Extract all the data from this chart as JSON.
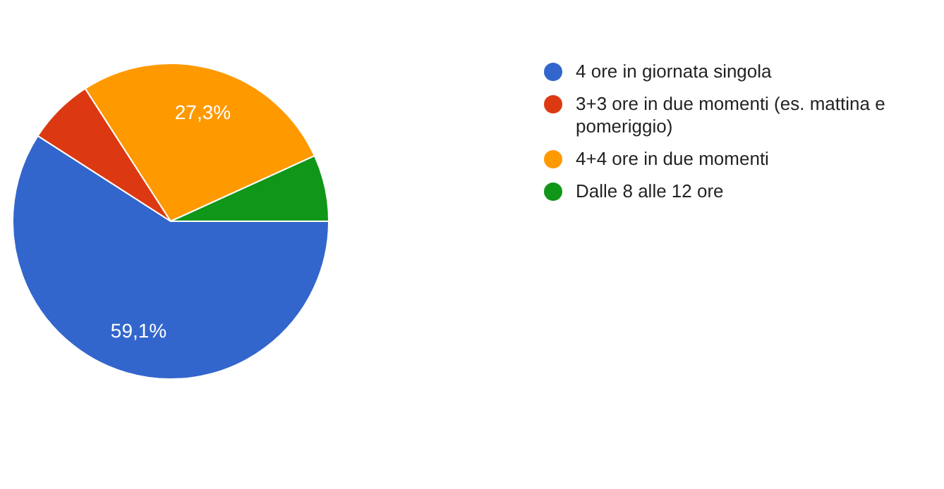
{
  "chart_data": {
    "type": "pie",
    "categories": [
      "4 ore in giornata singola",
      "3+3 ore in due momenti (es. mattina e pomeriggio)",
      "4+4 ore in due momenti",
      "Dalle 8 alle 12 ore"
    ],
    "values": [
      59.1,
      6.8,
      27.3,
      6.8
    ],
    "colors": [
      "#3366cc",
      "#dc3912",
      "#ff9900",
      "#109618"
    ],
    "value_labels": [
      "59,1%",
      null,
      "27,3%",
      null
    ],
    "legend": "right"
  }
}
